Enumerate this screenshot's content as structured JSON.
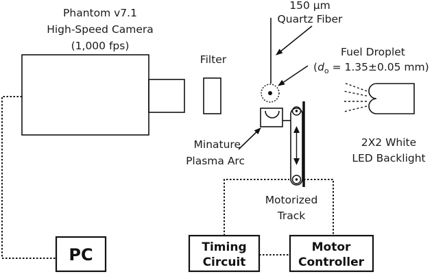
{
  "labels": {
    "camera": [
      "Phantom v7.1",
      "High-Speed Camera",
      "(1,000 fps)"
    ],
    "filter": "Filter",
    "fiber": [
      "150 μm",
      "Quartz Fiber"
    ],
    "droplet_line1": "Fuel Droplet",
    "droplet_prefix": "(",
    "droplet_symbol": "d",
    "droplet_subscript": "o",
    "droplet_value": " = 1.35±0.05 mm)",
    "backlight": [
      "2X2 White",
      "LED Backlight"
    ],
    "arc": [
      "Minature",
      "Plasma Arc"
    ],
    "track": [
      "Motorized",
      "Track"
    ],
    "pc": "PC",
    "timing": [
      "Timing",
      "Circuit"
    ],
    "motor": [
      "Motor",
      "Controller"
    ]
  },
  "colors": {
    "ink": "#111111",
    "background": "#ffffff"
  }
}
